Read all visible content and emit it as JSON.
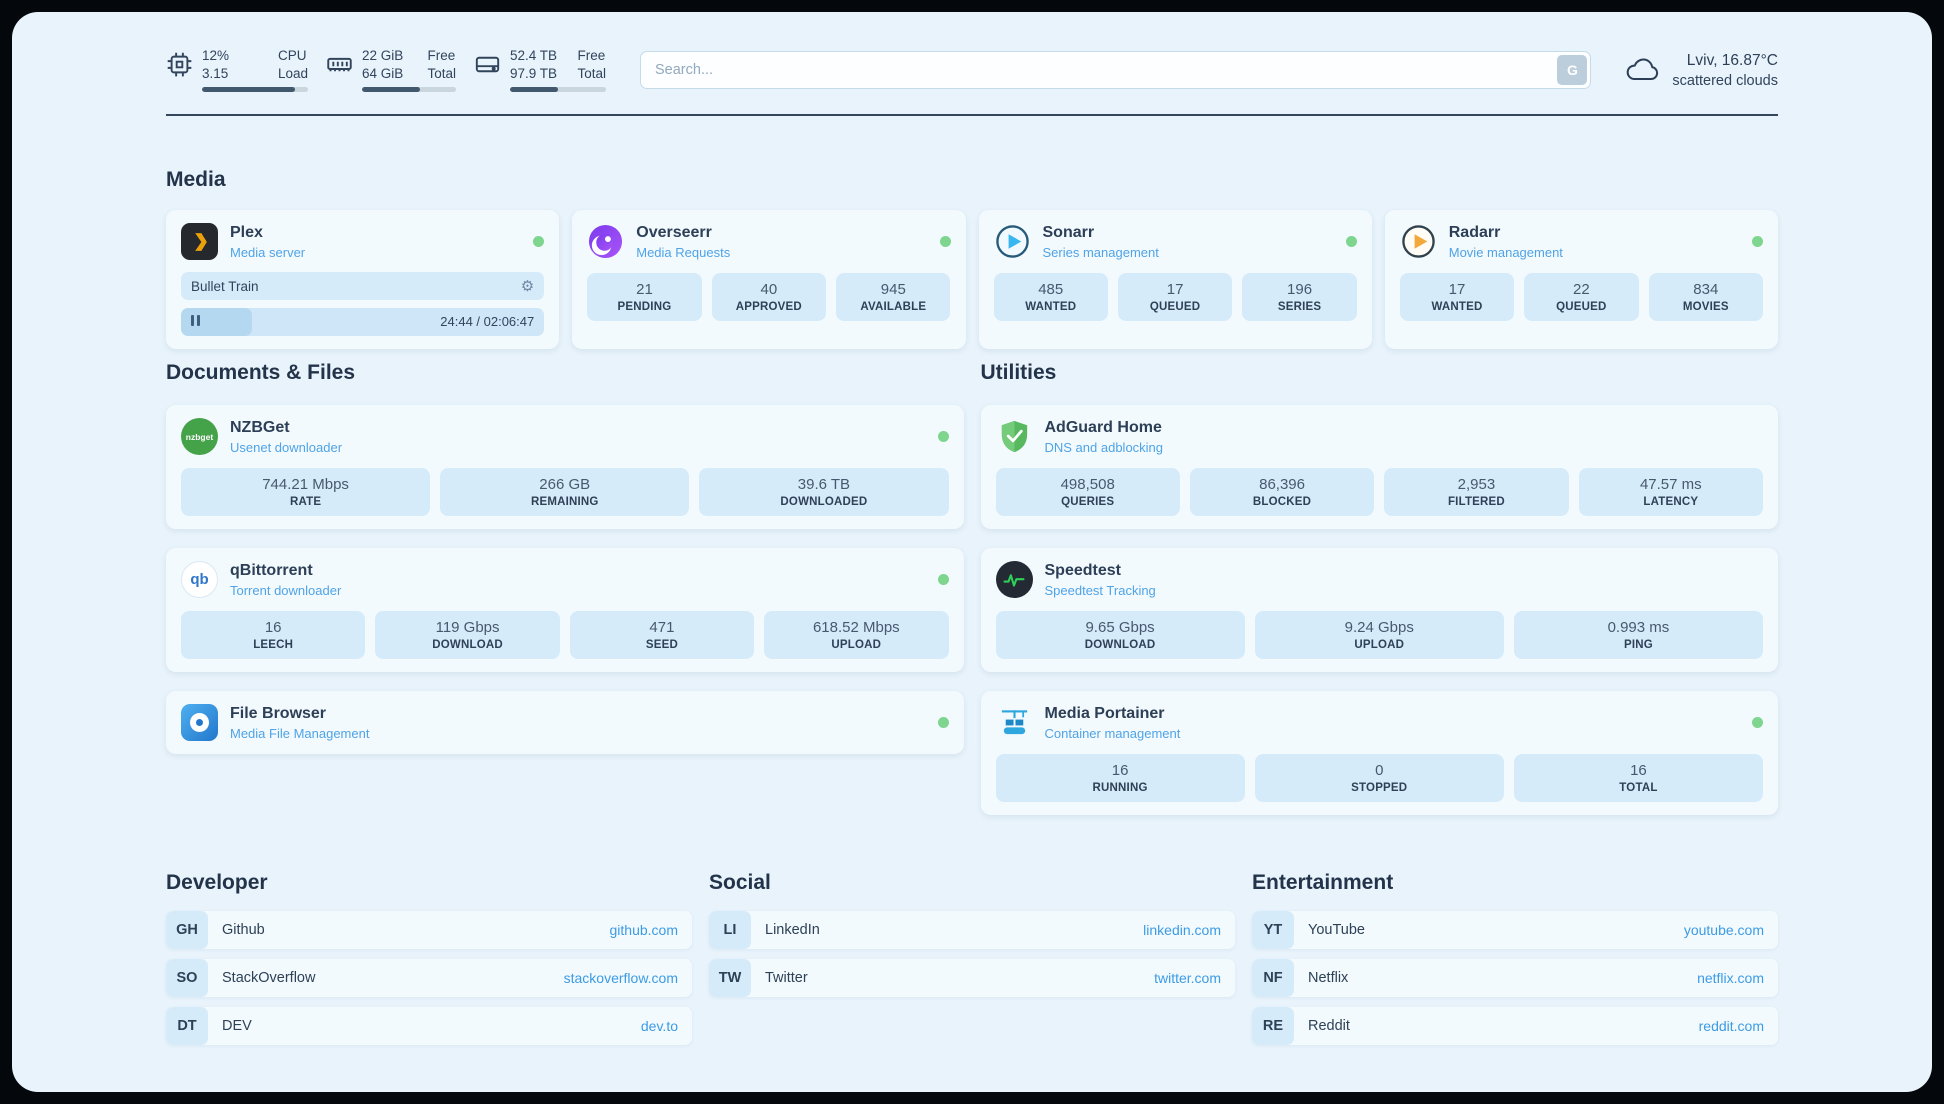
{
  "theme": {
    "page_bg": "#e8f3fb",
    "card_bg": "#f3fafe",
    "tile_bg": "#d6ebfa",
    "text_dark": "#2c3f56",
    "accent_blue": "#4fa3e6",
    "link_blue": "#3d9be4",
    "status_green": "#7dd58e"
  },
  "glyphs": {
    "gear": "⚙"
  },
  "topbar": {
    "cpu": {
      "values": [
        "12%",
        "3.15"
      ],
      "labels": [
        "CPU",
        "Load"
      ],
      "progress": 88
    },
    "ram": {
      "values": [
        "22 GiB",
        "64 GiB"
      ],
      "labels": [
        "Free",
        "Total"
      ],
      "progress": 62
    },
    "disk": {
      "values": [
        "52.4 TB",
        "97.9 TB"
      ],
      "labels": [
        "Free",
        "Total"
      ],
      "progress": 50
    },
    "search": {
      "placeholder": "Search...",
      "button_label": "G"
    },
    "weather": {
      "location_temp": "Lviv, 16.87°C",
      "condition": "scattered clouds"
    }
  },
  "sections": {
    "media": {
      "title": "Media",
      "plex": {
        "name": "Plex",
        "subtitle": "Media server",
        "now_playing": "Bullet Train",
        "elapsed_total": "24:44 / 02:06:47",
        "progress": 19.5
      },
      "overseerr": {
        "name": "Overseerr",
        "subtitle": "Media Requests",
        "stats": [
          {
            "value": "21",
            "label": "PENDING"
          },
          {
            "value": "40",
            "label": "APPROVED"
          },
          {
            "value": "945",
            "label": "AVAILABLE"
          }
        ]
      },
      "sonarr": {
        "name": "Sonarr",
        "subtitle": "Series management",
        "stats": [
          {
            "value": "485",
            "label": "WANTED"
          },
          {
            "value": "17",
            "label": "QUEUED"
          },
          {
            "value": "196",
            "label": "SERIES"
          }
        ]
      },
      "radarr": {
        "name": "Radarr",
        "subtitle": "Movie management",
        "stats": [
          {
            "value": "17",
            "label": "WANTED"
          },
          {
            "value": "22",
            "label": "QUEUED"
          },
          {
            "value": "834",
            "label": "MOVIES"
          }
        ]
      }
    },
    "documents": {
      "title": "Documents & Files",
      "nzbget": {
        "name": "NZBGet",
        "subtitle": "Usenet downloader",
        "icon_text": "nzbget",
        "stats": [
          {
            "value": "744.21 Mbps",
            "label": "RATE"
          },
          {
            "value": "266 GB",
            "label": "REMAINING"
          },
          {
            "value": "39.6 TB",
            "label": "DOWNLOADED"
          }
        ]
      },
      "qbittorrent": {
        "name": "qBittorrent",
        "subtitle": "Torrent downloader",
        "icon_text": "qb",
        "stats": [
          {
            "value": "16",
            "label": "LEECH"
          },
          {
            "value": "119 Gbps",
            "label": "DOWNLOAD"
          },
          {
            "value": "471",
            "label": "SEED"
          },
          {
            "value": "618.52 Mbps",
            "label": "UPLOAD"
          }
        ]
      },
      "filebrowser": {
        "name": "File Browser",
        "subtitle": "Media File Management"
      }
    },
    "utilities": {
      "title": "Utilities",
      "adguard": {
        "name": "AdGuard Home",
        "subtitle": "DNS and adblocking",
        "stats": [
          {
            "value": "498,508",
            "label": "QUERIES"
          },
          {
            "value": "86,396",
            "label": "BLOCKED"
          },
          {
            "value": "2,953",
            "label": "FILTERED"
          },
          {
            "value": "47.57 ms",
            "label": "LATENCY"
          }
        ]
      },
      "speedtest": {
        "name": "Speedtest",
        "subtitle": "Speedtest Tracking",
        "stats": [
          {
            "value": "9.65 Gbps",
            "label": "DOWNLOAD"
          },
          {
            "value": "9.24 Gbps",
            "label": "UPLOAD"
          },
          {
            "value": "0.993 ms",
            "label": "PING"
          }
        ]
      },
      "portainer": {
        "name": "Media Portainer",
        "subtitle": "Container management",
        "stats": [
          {
            "value": "16",
            "label": "RUNNING"
          },
          {
            "value": "0",
            "label": "STOPPED"
          },
          {
            "value": "16",
            "label": "TOTAL"
          }
        ]
      }
    }
  },
  "bookmarks": [
    {
      "title": "Developer",
      "items": [
        {
          "abbr": "GH",
          "name": "Github",
          "url": "github.com"
        },
        {
          "abbr": "SO",
          "name": "StackOverflow",
          "url": "stackoverflow.com"
        },
        {
          "abbr": "DT",
          "name": "DEV",
          "url": "dev.to"
        }
      ]
    },
    {
      "title": "Social",
      "items": [
        {
          "abbr": "LI",
          "name": "LinkedIn",
          "url": "linkedin.com"
        },
        {
          "abbr": "TW",
          "name": "Twitter",
          "url": "twitter.com"
        }
      ]
    },
    {
      "title": "Entertainment",
      "items": [
        {
          "abbr": "YT",
          "name": "YouTube",
          "url": "youtube.com"
        },
        {
          "abbr": "NF",
          "name": "Netflix",
          "url": "netflix.com"
        },
        {
          "abbr": "RE",
          "name": "Reddit",
          "url": "reddit.com"
        }
      ]
    }
  ]
}
